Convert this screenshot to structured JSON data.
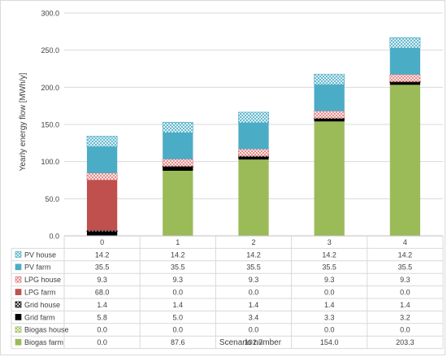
{
  "chart_data": {
    "type": "bar",
    "stacked": true,
    "title": "",
    "xlabel": "Scenario number",
    "ylabel": "Yearly energy flow [MWh/y]",
    "ylim": [
      0,
      300
    ],
    "yticks": [
      0,
      50,
      100,
      150,
      200,
      250,
      300
    ],
    "ytick_labels": [
      "0.0",
      "50.0",
      "100.0",
      "150.0",
      "200.0",
      "250.0",
      "300.0"
    ],
    "grid": true,
    "legend": "data-table",
    "categories": [
      "0",
      "1",
      "2",
      "3",
      "4"
    ],
    "series": [
      {
        "name": "Biogas farm",
        "values": [
          0.0,
          87.6,
          102.7,
          154.0,
          203.3
        ],
        "labels": [
          "0.0",
          "87.6",
          "102.7",
          "154.0",
          "203.3"
        ],
        "color": "#9bbb59",
        "pattern": "solid"
      },
      {
        "name": "Biogas house",
        "values": [
          0.0,
          0.0,
          0.0,
          0.0,
          0.0
        ],
        "labels": [
          "0.0",
          "0.0",
          "0.0",
          "0.0",
          "0.0"
        ],
        "color": "#9bbb59",
        "pattern": "hatch"
      },
      {
        "name": "Grid farm",
        "values": [
          5.8,
          5.0,
          3.4,
          3.3,
          3.2
        ],
        "labels": [
          "5.8",
          "5.0",
          "3.4",
          "3.3",
          "3.2"
        ],
        "color": "#000000",
        "pattern": "solid"
      },
      {
        "name": "Grid house",
        "values": [
          1.4,
          1.4,
          1.4,
          1.4,
          1.4
        ],
        "labels": [
          "1.4",
          "1.4",
          "1.4",
          "1.4",
          "1.4"
        ],
        "color": "#000000",
        "pattern": "hatch"
      },
      {
        "name": "LPG farm",
        "values": [
          68.0,
          0.0,
          0.0,
          0.0,
          0.0
        ],
        "labels": [
          "68.0",
          "0.0",
          "0.0",
          "0.0",
          "0.0"
        ],
        "color": "#c0504d",
        "pattern": "solid"
      },
      {
        "name": "LPG house",
        "values": [
          9.3,
          9.3,
          9.3,
          9.3,
          9.3
        ],
        "labels": [
          "9.3",
          "9.3",
          "9.3",
          "9.3",
          "9.3"
        ],
        "color": "#e07b79",
        "pattern": "hatch"
      },
      {
        "name": "PV farm",
        "values": [
          35.5,
          35.5,
          35.5,
          35.5,
          35.5
        ],
        "labels": [
          "35.5",
          "35.5",
          "35.5",
          "35.5",
          "35.5"
        ],
        "color": "#4bacc6",
        "pattern": "solid"
      },
      {
        "name": "PV house",
        "values": [
          14.2,
          14.2,
          14.2,
          14.2,
          14.2
        ],
        "labels": [
          "14.2",
          "14.2",
          "14.2",
          "14.2",
          "14.2"
        ],
        "color": "#4bacc6",
        "pattern": "hatch"
      }
    ]
  }
}
